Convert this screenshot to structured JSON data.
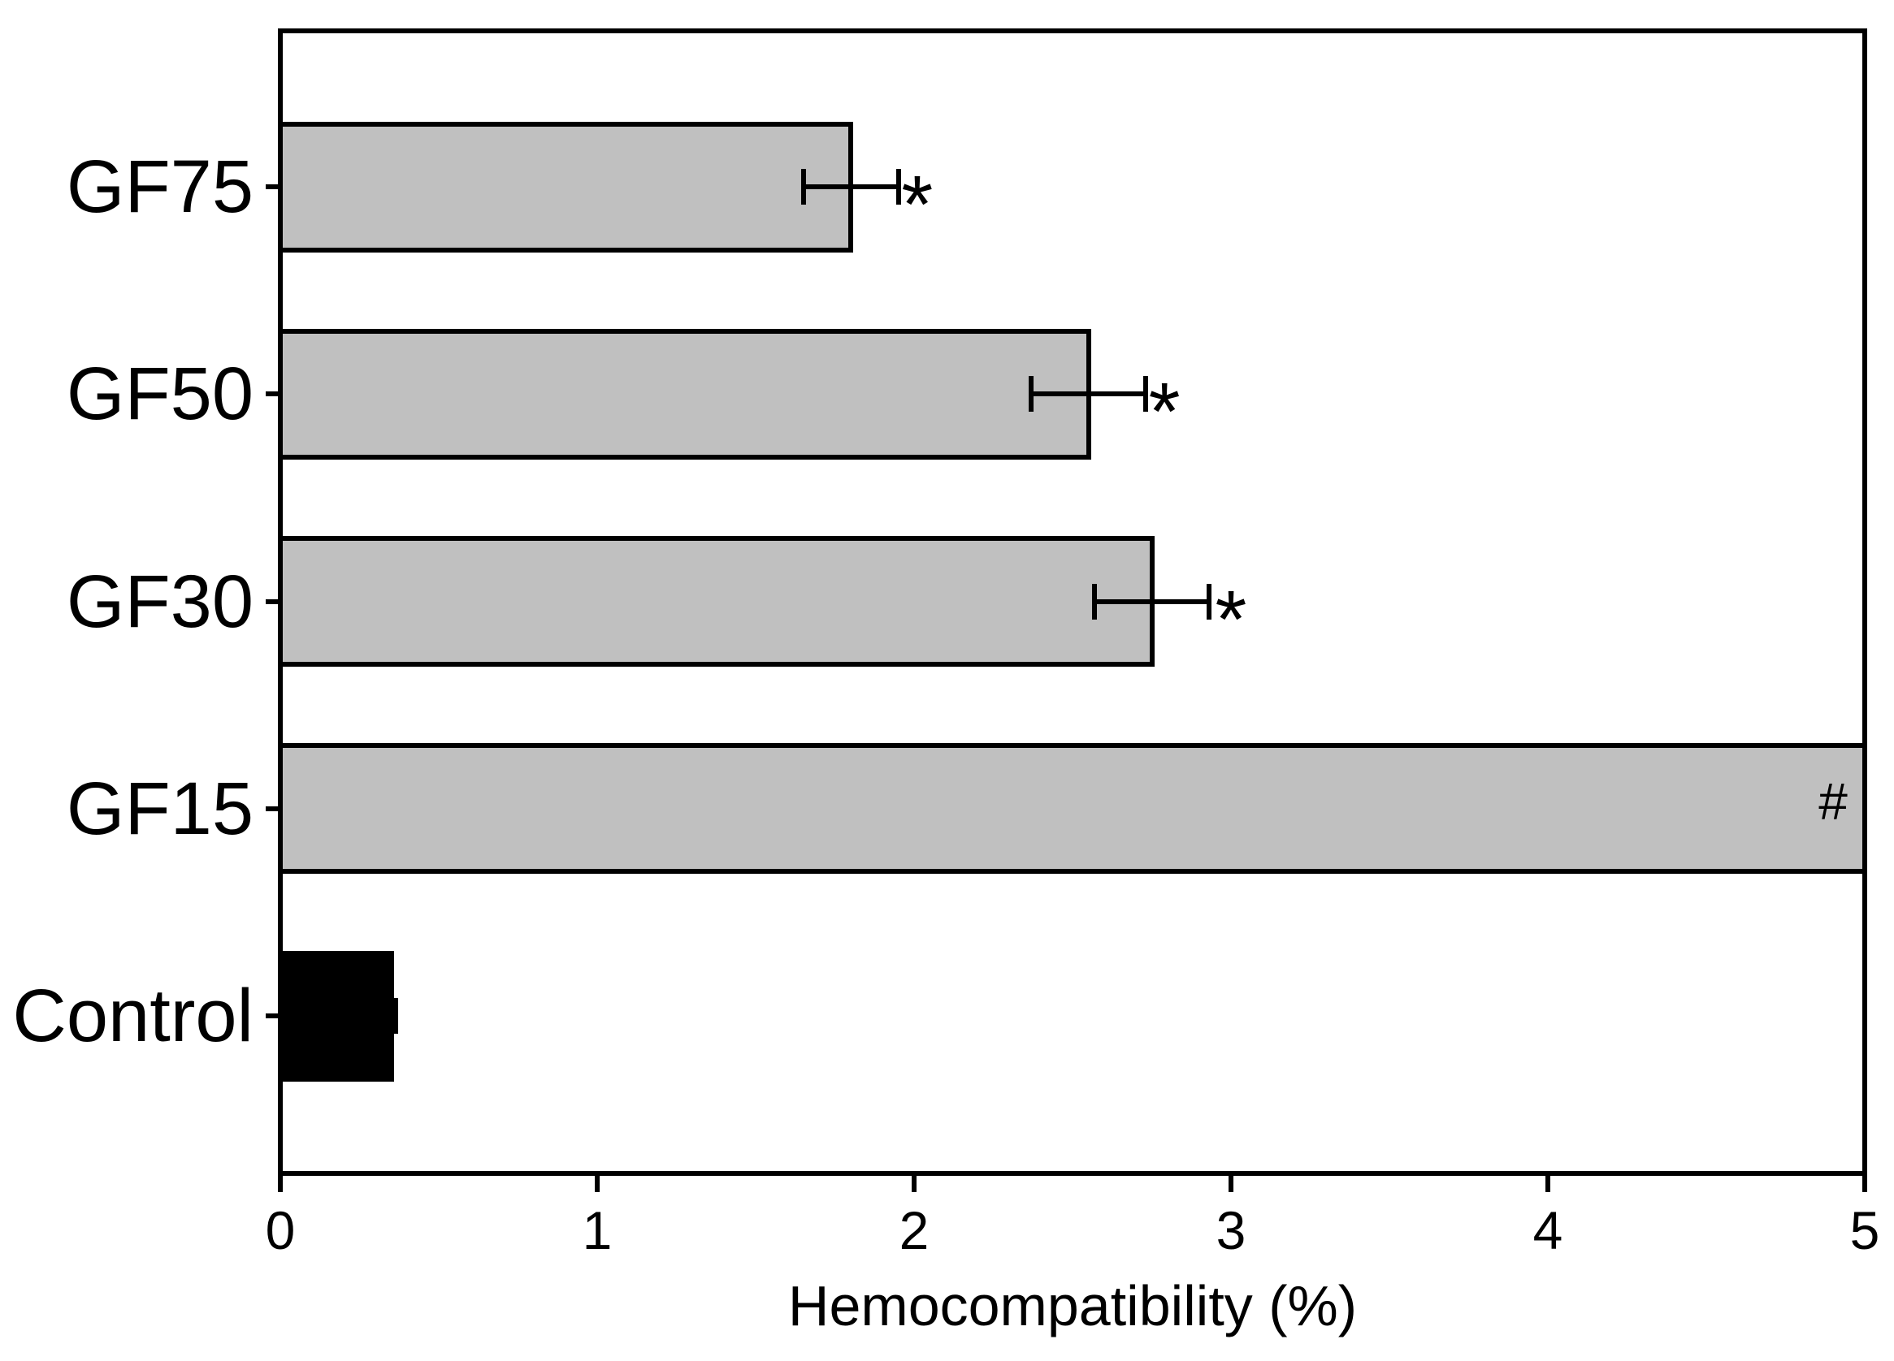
{
  "figure": {
    "background": "#ffffff",
    "axis_color": "#000000",
    "default_bar_fill": "#c0c0c0"
  },
  "chart_data": {
    "type": "bar",
    "orientation": "horizontal",
    "title": "",
    "xlabel": "Hemocompatibility (%)",
    "ylabel": "",
    "xlim": [
      0,
      5
    ],
    "xticks": [
      "0",
      "1",
      "2",
      "3",
      "4",
      "5"
    ],
    "grid": false,
    "legend": null,
    "categories": [
      "GF75",
      "GF50",
      "GF30",
      "GF15",
      "Control"
    ],
    "values": [
      1.8,
      2.55,
      2.75,
      5,
      0.35
    ],
    "errors": [
      0.15,
      0.18,
      0.18,
      0,
      0.015
    ],
    "bar_colors": [
      "#c0c0c0",
      "#c0c0c0",
      "#c0c0c0",
      "#c0c0c0",
      "#000000"
    ],
    "annotations": [
      {
        "category": "GF75",
        "text": "*",
        "x": 2.01
      },
      {
        "category": "GF50",
        "text": "*",
        "x": 2.79
      },
      {
        "category": "GF30",
        "text": "*",
        "x": 3.0
      },
      {
        "category": "GF15",
        "text": "#",
        "x": 4.9
      }
    ]
  }
}
